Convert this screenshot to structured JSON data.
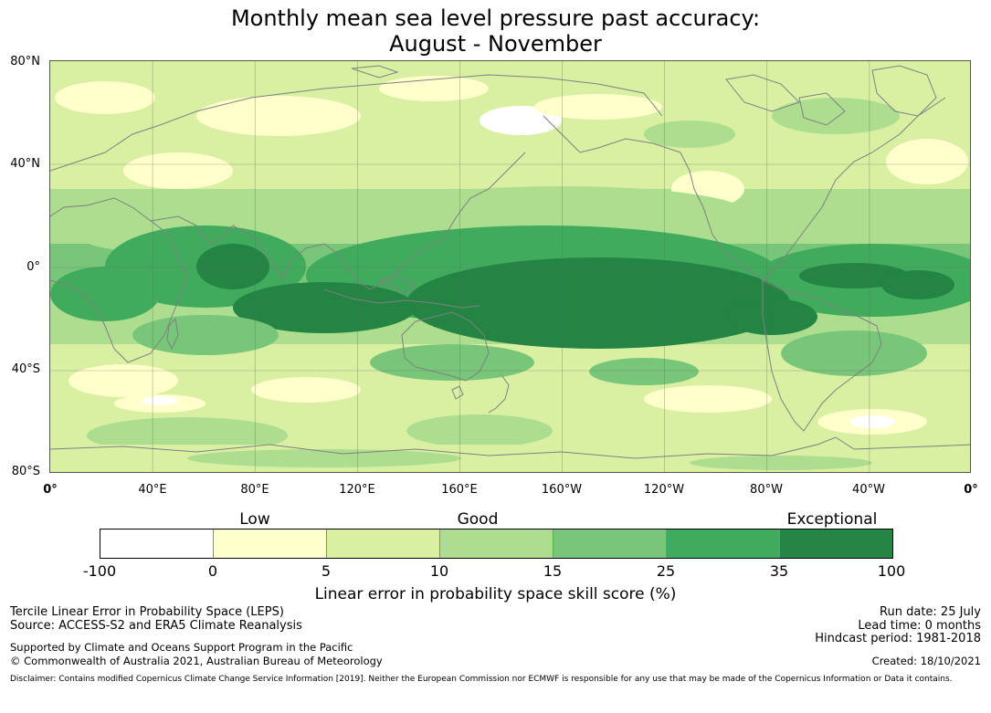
{
  "title": {
    "line1": "Monthly mean sea level pressure past accuracy:",
    "line2": "August - November"
  },
  "map": {
    "lat_labels": [
      "80°N",
      "40°N",
      "0°",
      "40°S",
      "80°S"
    ],
    "lon_labels": [
      "0°",
      "40°E",
      "80°E",
      "120°E",
      "160°E",
      "160°W",
      "120°W",
      "80°W",
      "40°W",
      "0°"
    ],
    "lat_range": [
      -80,
      80
    ],
    "lon_range": [
      0,
      360
    ],
    "gridlines": true,
    "coastline_color": "#808080"
  },
  "colorbar": {
    "categories": [
      {
        "label": "Low",
        "value": 2.5
      },
      {
        "label": "Good",
        "value": 10
      },
      {
        "label": "Exceptional",
        "value": 35
      }
    ],
    "ticks": [
      "-100",
      "0",
      "5",
      "10",
      "15",
      "25",
      "35",
      "100"
    ],
    "colors": [
      "#ffffff",
      "#ffffcc",
      "#d9f0a3",
      "#addd8e",
      "#78c679",
      "#41ab5d",
      "#238443"
    ],
    "label": "Linear error in probability space skill score (%)"
  },
  "footer": {
    "method": "Tercile Linear Error in Probability Space (LEPS)",
    "source": "Source: ACCESS-S2 and ERA5 Climate Reanalysis",
    "support": "Supported by Climate and Oceans Support Program in the Pacific",
    "copyright": "© Commonwealth of Australia 2021, Australian Bureau of Meteorology",
    "run_date": "Run date: 25 July",
    "lead_time": "Lead time: 0 months",
    "hindcast": "Hindcast period: 1981-2018",
    "created": "Created: 18/10/2021",
    "disclaimer": "Disclaimer: Contains modified Copernicus Climate Change Service Information [2019]. Neither the European Commission nor ECMWF is responsible for any use that may be made of the Copernicus Information or Data it contains."
  }
}
